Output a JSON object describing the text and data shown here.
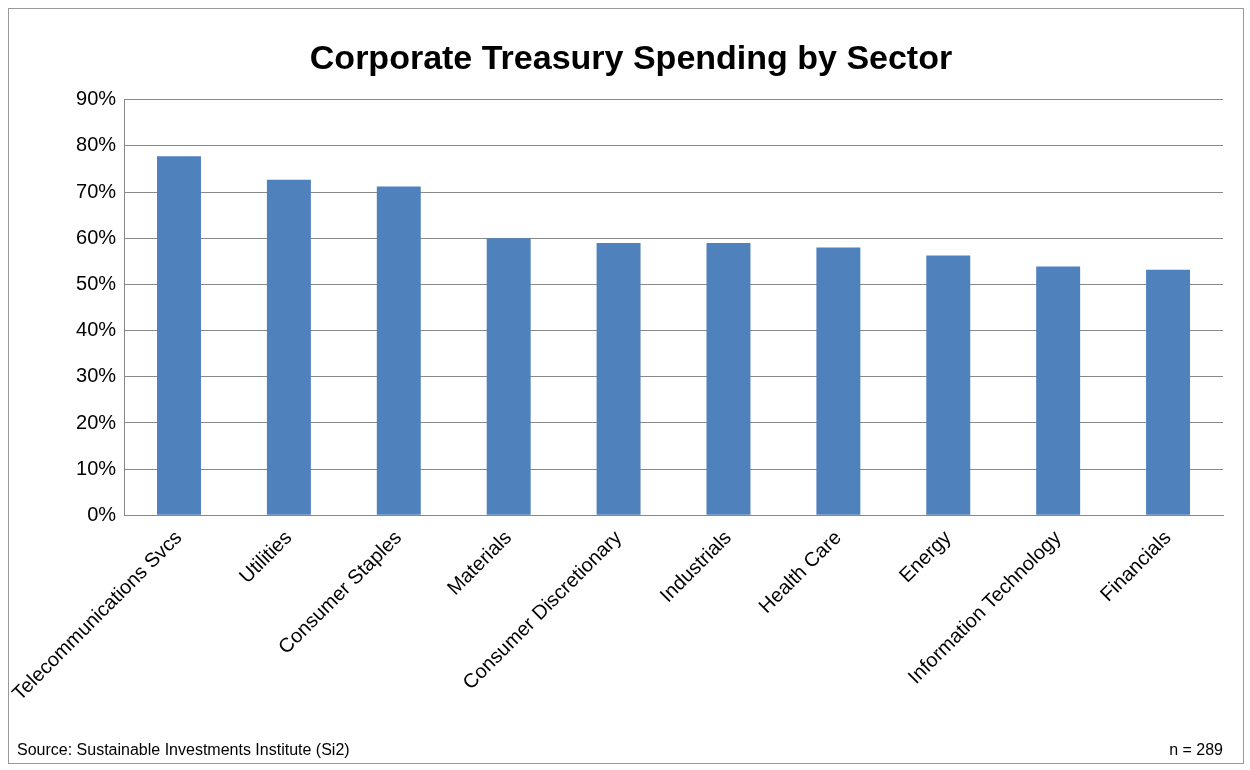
{
  "chart_data": {
    "type": "bar",
    "title": "Corporate Treasury Spending by Sector",
    "categories": [
      "Telecommunications Svcs",
      "Utilities",
      "Consumer Staples",
      "Materials",
      "Consumer Discretionary",
      "Industrials",
      "Health Care",
      "Energy",
      "Information Technology",
      "Financials"
    ],
    "values": [
      77.8,
      72.7,
      71.2,
      60,
      59,
      59,
      58,
      56.3,
      53.9,
      53.2
    ],
    "color": "#4f81bd",
    "ylim": [
      0,
      90
    ],
    "yticks": [
      {
        "value": 0,
        "label": "0%"
      },
      {
        "value": 10,
        "label": "10%"
      },
      {
        "value": 20,
        "label": "20%"
      },
      {
        "value": 30,
        "label": "30%"
      },
      {
        "value": 40,
        "label": "40%"
      },
      {
        "value": 50,
        "label": "50%"
      },
      {
        "value": 60,
        "label": "60%"
      },
      {
        "value": 70,
        "label": "70%"
      },
      {
        "value": 80,
        "label": "80%"
      },
      {
        "value": 90,
        "label": "90%"
      }
    ],
    "grid": "y",
    "annotations": [
      "Source: Sustainable Investments Institute (Si2)",
      "n = 289"
    ]
  }
}
